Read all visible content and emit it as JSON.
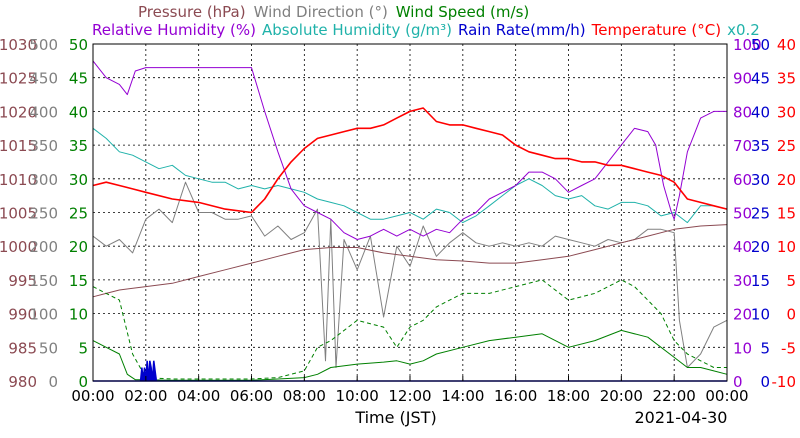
{
  "chart_data": {
    "type": "line",
    "title_line1": [
      {
        "text": "Pressure (hPa)",
        "color": "#8B4A52"
      },
      {
        "text": "Wind Direction (°)",
        "color": "#808080"
      },
      {
        "text": "Wind Speed (m/s)",
        "color": "#008000"
      }
    ],
    "title_line2": [
      {
        "text": "Relative Humidity (%)",
        "color": "#9400D3"
      },
      {
        "text": "Absolute Humidity (g/m³)",
        "color": "#20B2AA"
      },
      {
        "text": "Rain Rate(mm/h)",
        "color": "#0000CD"
      },
      {
        "text": "Temperature (°C)",
        "color": "#FF0000"
      },
      {
        "text": "x0.2",
        "color": "#20B2AA"
      }
    ],
    "xlabel": "Time (JST)",
    "date": "2021-04-30",
    "x_ticks": [
      "00:00",
      "02:00",
      "04:00",
      "06:00",
      "08:00",
      "10:00",
      "12:00",
      "14:00",
      "16:00",
      "18:00",
      "20:00",
      "22:00",
      "00:00"
    ],
    "x_range_hours": [
      0,
      24
    ],
    "grid": true,
    "axes_left": [
      {
        "name": "Pressure",
        "unit": "hPa",
        "color": "#8B4A52",
        "ticks": [
          "1030",
          "1025",
          "1020",
          "1015",
          "1010",
          "1005",
          "1000",
          "995",
          "990",
          "985",
          "980"
        ],
        "range": [
          980,
          1030
        ]
      },
      {
        "name": "Wind Direction",
        "unit": "°",
        "color": "#808080",
        "ticks": [
          "500",
          "450",
          "400",
          "350",
          "300",
          "250",
          "200",
          "150",
          "100",
          "50",
          "0"
        ],
        "range": [
          0,
          500
        ]
      },
      {
        "name": "Wind Speed",
        "unit": "m/s",
        "color": "#008000",
        "ticks": [
          "50",
          "45",
          "40",
          "35",
          "30",
          "25",
          "20",
          "15",
          "10",
          "5",
          "0"
        ],
        "range": [
          0,
          50
        ]
      }
    ],
    "axes_right": [
      {
        "name": "Relative Humidity",
        "unit": "%",
        "color": "#9400D3",
        "ticks": [
          "100",
          "90",
          "80",
          "70",
          "60",
          "50",
          "40",
          "30",
          "20",
          "10",
          "0"
        ],
        "range": [
          0,
          100
        ]
      },
      {
        "name": "Rain Rate",
        "unit": "mm/h",
        "color": "#0000CD",
        "ticks": [
          "50",
          "45",
          "40",
          "35",
          "30",
          "25",
          "20",
          "15",
          "10",
          "5",
          "0"
        ],
        "range": [
          0,
          50
        ]
      },
      {
        "name": "Temperature",
        "unit": "°C",
        "color": "#FF0000",
        "ticks": [
          "40",
          "35",
          "30",
          "25",
          "20",
          "15",
          "10",
          "5",
          "0",
          "-5",
          "-10"
        ],
        "range": [
          -10,
          40
        ]
      }
    ],
    "series": [
      {
        "name": "Pressure",
        "color": "#8B4A52",
        "axis": "Pressure",
        "x": [
          0,
          0.5,
          1,
          2,
          3,
          4,
          5,
          6,
          7,
          8,
          9,
          10,
          11,
          12,
          13,
          14,
          15,
          16,
          17,
          18,
          19,
          20,
          21,
          22,
          23,
          24
        ],
        "y": [
          992.5,
          993,
          993.5,
          994,
          994.5,
          995.5,
          996.5,
          997.5,
          998.5,
          999.5,
          999.8,
          999.8,
          999,
          998.5,
          998,
          997.8,
          997.5,
          997.5,
          998,
          998.5,
          999.5,
          1000.5,
          1001.5,
          1002.5,
          1003,
          1003.2
        ]
      },
      {
        "name": "Wind Direction",
        "color": "#808080",
        "axis": "Wind Direction",
        "x": [
          0,
          0.5,
          1,
          1.5,
          2,
          2.5,
          3,
          3.5,
          4,
          4.5,
          5,
          5.5,
          6,
          6.5,
          7,
          7.5,
          8,
          8.5,
          8.8,
          9,
          9.2,
          9.5,
          10,
          10.5,
          11,
          11.5,
          12,
          12.5,
          13,
          13.5,
          14,
          14.5,
          15,
          15.5,
          16,
          16.5,
          17,
          17.5,
          18,
          18.5,
          19,
          19.5,
          20,
          20.5,
          21,
          21.5,
          22,
          22.2,
          22.5,
          23,
          23.5,
          24
        ],
        "y": [
          215,
          200,
          210,
          190,
          240,
          255,
          235,
          295,
          250,
          250,
          240,
          240,
          245,
          215,
          230,
          210,
          220,
          255,
          30,
          240,
          20,
          210,
          165,
          215,
          95,
          200,
          170,
          230,
          185,
          205,
          220,
          205,
          200,
          205,
          200,
          205,
          200,
          215,
          210,
          205,
          200,
          210,
          205,
          210,
          225,
          225,
          220,
          90,
          20,
          40,
          80,
          90
        ]
      },
      {
        "name": "Wind Speed (mean)",
        "color": "#008000",
        "axis": "Wind Speed",
        "x": [
          0,
          0.5,
          1,
          1.3,
          1.6,
          2,
          3,
          4,
          5,
          6,
          7,
          8,
          8.5,
          9,
          10,
          11,
          11.5,
          12,
          12.5,
          13,
          14,
          15,
          16,
          17,
          18,
          19,
          20,
          21,
          22,
          22.5,
          23,
          23.5,
          24
        ],
        "y": [
          6,
          5,
          4,
          1,
          0.2,
          0.2,
          0.1,
          0.1,
          0.1,
          0.1,
          0.3,
          0.5,
          1,
          2,
          2.5,
          2.8,
          3,
          2.5,
          3,
          4,
          5,
          6,
          6.5,
          7,
          5,
          6,
          7.5,
          6.5,
          3.5,
          2,
          2,
          1.5,
          1
        ]
      },
      {
        "name": "Wind Speed (gust)",
        "color": "#008000",
        "dashed": true,
        "axis": "Wind Speed",
        "x": [
          0,
          0.5,
          1,
          1.5,
          2,
          3,
          4,
          5,
          6,
          7,
          8,
          8.5,
          9,
          10,
          11,
          11.5,
          12,
          12.5,
          13,
          14,
          15,
          16,
          17,
          18,
          19,
          20,
          20.5,
          21,
          21.5,
          22,
          22.5,
          23,
          23.5,
          24
        ],
        "y": [
          14,
          13,
          12,
          4,
          0.5,
          0.3,
          0.3,
          0.3,
          0.3,
          0.5,
          1.5,
          5,
          6,
          9,
          8,
          5,
          8,
          9,
          11,
          13,
          13,
          14,
          15,
          12,
          13,
          15,
          14,
          12,
          10,
          6,
          4,
          3,
          2,
          2
        ]
      },
      {
        "name": "Relative Humidity",
        "color": "#9400D3",
        "axis": "Relative Humidity",
        "x": [
          0,
          0.5,
          1,
          1.3,
          1.6,
          2,
          3,
          4,
          5,
          6,
          6.5,
          7,
          7.5,
          8,
          8.5,
          9,
          9.5,
          10,
          10.5,
          11,
          11.5,
          12,
          12.5,
          13,
          13.5,
          14,
          14.5,
          15,
          15.5,
          16,
          16.5,
          17,
          17.5,
          18,
          18.5,
          19,
          19.5,
          20,
          20.5,
          21,
          21.3,
          21.6,
          21.9,
          22,
          22.2,
          22.5,
          23,
          23.5,
          24
        ],
        "y": [
          95,
          90,
          88,
          85,
          92,
          93,
          93,
          93,
          93,
          93,
          80,
          68,
          57,
          52,
          50,
          48,
          44,
          42,
          43,
          45,
          43,
          45,
          43,
          45,
          44,
          48,
          50,
          54,
          56,
          58,
          62,
          62,
          60,
          56,
          58,
          60,
          65,
          70,
          75,
          74,
          70,
          58,
          50,
          48,
          55,
          68,
          78,
          80,
          80
        ]
      },
      {
        "name": "Absolute Humidity",
        "color": "#20B2AA",
        "axis": "Relative Humidity",
        "x": [
          0,
          0.5,
          1,
          1.5,
          2,
          2.5,
          3,
          3.5,
          4,
          4.5,
          5,
          5.5,
          6,
          6.5,
          7,
          7.5,
          8,
          8.5,
          9,
          9.5,
          10,
          10.5,
          11,
          11.5,
          12,
          12.5,
          13,
          13.5,
          14,
          14.5,
          15,
          15.5,
          16,
          16.5,
          17,
          17.5,
          18,
          18.5,
          19,
          19.5,
          20,
          20.5,
          21,
          21.5,
          22,
          22.5,
          23,
          23.5,
          24
        ],
        "y": [
          75,
          72,
          68,
          67,
          65,
          63,
          64,
          61,
          60,
          59,
          59,
          57,
          58,
          57,
          58,
          57,
          56,
          54,
          53,
          52,
          50,
          48,
          48,
          49,
          50,
          48,
          51,
          50,
          47,
          49,
          52,
          55,
          58,
          60,
          58,
          55,
          54,
          55,
          52,
          51,
          53,
          53,
          52,
          49,
          50,
          47,
          52,
          52,
          51
        ]
      },
      {
        "name": "Rain Rate",
        "color": "#0000CD",
        "axis": "Rain Rate",
        "x": [
          0,
          1.8,
          1.85,
          1.9,
          1.95,
          2.0,
          2.05,
          2.1,
          2.15,
          2.2,
          2.25,
          2.3,
          2.4,
          2.5,
          24
        ],
        "y": [
          0,
          0,
          2,
          0,
          2,
          0,
          3,
          0,
          3,
          2,
          0,
          3,
          0,
          0,
          0
        ]
      },
      {
        "name": "Temperature",
        "color": "#FF0000",
        "axis": "Temperature",
        "x": [
          0,
          0.5,
          1,
          1.5,
          2,
          3,
          4,
          5,
          6,
          6.5,
          7,
          7.5,
          8,
          8.5,
          9,
          9.5,
          10,
          10.5,
          11,
          11.5,
          12,
          12.5,
          13,
          13.5,
          14,
          14.5,
          15,
          15.5,
          16,
          16.5,
          17,
          17.5,
          18,
          18.5,
          19,
          19.5,
          20,
          20.5,
          21,
          21.5,
          22,
          22.5,
          23,
          23.5,
          24
        ],
        "y": [
          19,
          19.5,
          19,
          18.5,
          18,
          17,
          16.5,
          15.5,
          15,
          17,
          20,
          22.5,
          24.5,
          26,
          26.5,
          27,
          27.5,
          27.5,
          28,
          29,
          30,
          30.5,
          28.5,
          28,
          28,
          27.5,
          27,
          26.5,
          25,
          24,
          23.5,
          23,
          23,
          22.5,
          22.5,
          22,
          22,
          21.5,
          21,
          20.5,
          19.5,
          17,
          16.5,
          16,
          15.5
        ]
      }
    ]
  }
}
